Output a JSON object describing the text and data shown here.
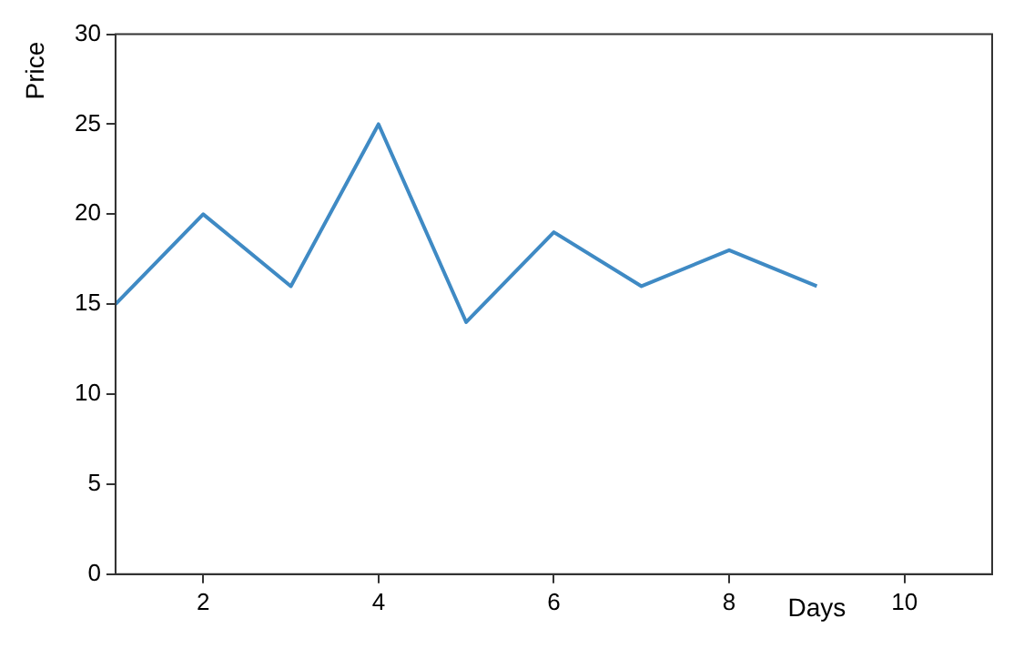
{
  "chart_data": {
    "type": "line",
    "xlabel": "Days",
    "ylabel": "Price",
    "x": [
      1,
      2,
      3,
      4,
      5,
      6,
      7,
      8,
      9
    ],
    "series": [
      {
        "color": "#3f8ac4",
        "values": [
          15,
          20,
          16,
          25,
          14,
          19,
          16,
          18,
          16
        ]
      }
    ],
    "xlim": [
      1,
      11
    ],
    "xticks": [
      2,
      4,
      6,
      8,
      10
    ],
    "ylim": [
      0,
      30
    ],
    "yticks": [
      0,
      5,
      10,
      15,
      20,
      25,
      30
    ],
    "grid": false,
    "legend": false,
    "marker": "none",
    "line_style": "solid"
  }
}
